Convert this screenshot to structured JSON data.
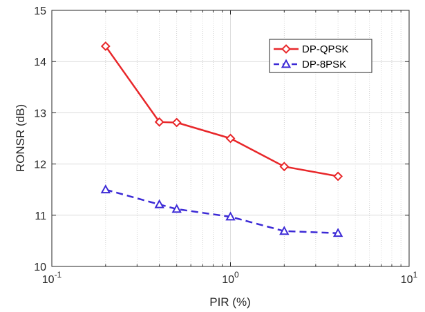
{
  "chart_data": {
    "type": "line",
    "title": "",
    "xlabel": "PIR (%)",
    "ylabel": "RONSR (dB)",
    "xscale": "log",
    "xlim": [
      0.1,
      10
    ],
    "ylim": [
      10,
      15
    ],
    "x_ticks": [
      0.1,
      1,
      10
    ],
    "x_tick_labels": [
      {
        "base": "10",
        "exp": "-1"
      },
      {
        "base": "10",
        "exp": "0"
      },
      {
        "base": "10",
        "exp": "1"
      }
    ],
    "y_ticks": [
      10,
      11,
      12,
      13,
      14,
      15
    ],
    "y_tick_labels": [
      "10",
      "11",
      "12",
      "13",
      "14",
      "15"
    ],
    "grid": "major and minor",
    "legend_position": "top-right",
    "series": [
      {
        "name": "DP-QPSK",
        "color": "#e8272a",
        "marker": "diamond",
        "line_style": "solid",
        "x": [
          0.2,
          0.4,
          0.5,
          1,
          2,
          4
        ],
        "y": [
          14.3,
          12.82,
          12.81,
          12.5,
          11.95,
          11.76
        ]
      },
      {
        "name": "DP-8PSK",
        "color": "#3c2ad6",
        "marker": "triangle",
        "line_style": "dashed",
        "x": [
          0.2,
          0.4,
          0.5,
          1,
          2,
          4
        ],
        "y": [
          11.5,
          11.21,
          11.12,
          10.97,
          10.69,
          10.65
        ]
      }
    ]
  }
}
